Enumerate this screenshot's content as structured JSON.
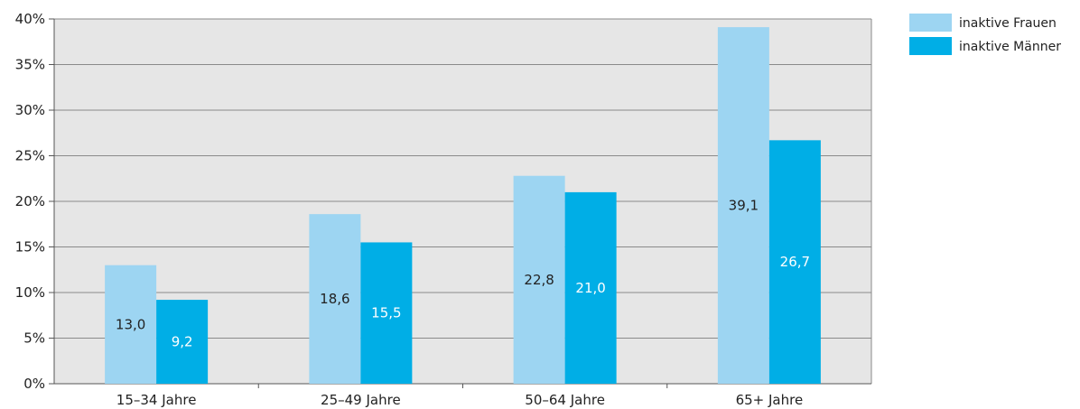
{
  "chart_data": {
    "type": "bar",
    "categories": [
      "15–34 Jahre",
      "25–49 Jahre",
      "50–64 Jahre",
      "65+ Jahre"
    ],
    "series": [
      {
        "name": "inaktive Frauen",
        "values": [
          13.0,
          18.6,
          22.8,
          39.1
        ],
        "labels": [
          "13,0",
          "18,6",
          "22,8",
          "39,1"
        ],
        "color": "#9dd5f2",
        "label_color": "#222222"
      },
      {
        "name": "inaktive Männer",
        "values": [
          9.2,
          15.5,
          21.0,
          26.7
        ],
        "labels": [
          "9,2",
          "15,5",
          "21,0",
          "26,7"
        ],
        "color": "#00aee6",
        "label_color": "#ffffff"
      }
    ],
    "ylim": [
      0,
      40
    ],
    "y_ticks": [
      "0%",
      "5%",
      "10%",
      "15%",
      "20%",
      "25%",
      "30%",
      "35%",
      "40%"
    ],
    "title": "",
    "xlabel": "",
    "ylabel": "",
    "grid": true,
    "plot_background": "#e6e6e6",
    "legend_position": "top-right"
  }
}
